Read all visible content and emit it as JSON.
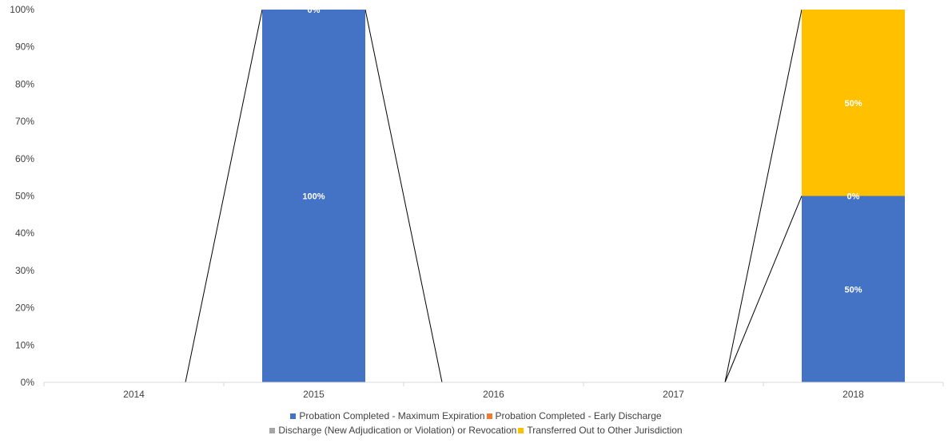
{
  "chart_data": {
    "type": "bar",
    "stacked": true,
    "categories": [
      "2014",
      "2015",
      "2016",
      "2017",
      "2018"
    ],
    "ylim": [
      0,
      100
    ],
    "yticks": [
      "0%",
      "10%",
      "20%",
      "30%",
      "40%",
      "50%",
      "60%",
      "70%",
      "80%",
      "90%",
      "100%"
    ],
    "grid": false,
    "legend_position": "bottom",
    "series": [
      {
        "name": "Probation Completed - Maximum Expiration",
        "color": "#4472C4",
        "values": [
          0,
          100,
          0,
          0,
          50
        ]
      },
      {
        "name": "Probation Completed - Early Discharge",
        "color": "#ED7D31",
        "values": [
          0,
          0,
          0,
          0,
          0
        ]
      },
      {
        "name": "Discharge (New Adjudication or Violation) or Revocation",
        "color": "#A5A5A5",
        "values": [
          0,
          0,
          0,
          0,
          0
        ]
      },
      {
        "name": "Transferred Out to Other Jurisdiction",
        "color": "#FFC000",
        "values": [
          0,
          0,
          0,
          0,
          50
        ]
      }
    ],
    "data_labels": [
      {
        "category": "2015",
        "series": 0,
        "text": "100%"
      },
      {
        "category": "2015",
        "series": 1,
        "text": "0%"
      },
      {
        "category": "2018",
        "series": 0,
        "text": "50%"
      },
      {
        "category": "2018",
        "series": 1,
        "text": "0%"
      },
      {
        "category": "2018",
        "series": 3,
        "text": "50%"
      }
    ],
    "legend": {
      "rows": [
        [
          "Probation Completed - Maximum Expiration",
          "Probation Completed - Early Discharge"
        ],
        [
          "Discharge (New Adjudication or Violation) or Revocation",
          "Transferred Out to Other Jurisdiction"
        ]
      ]
    }
  }
}
